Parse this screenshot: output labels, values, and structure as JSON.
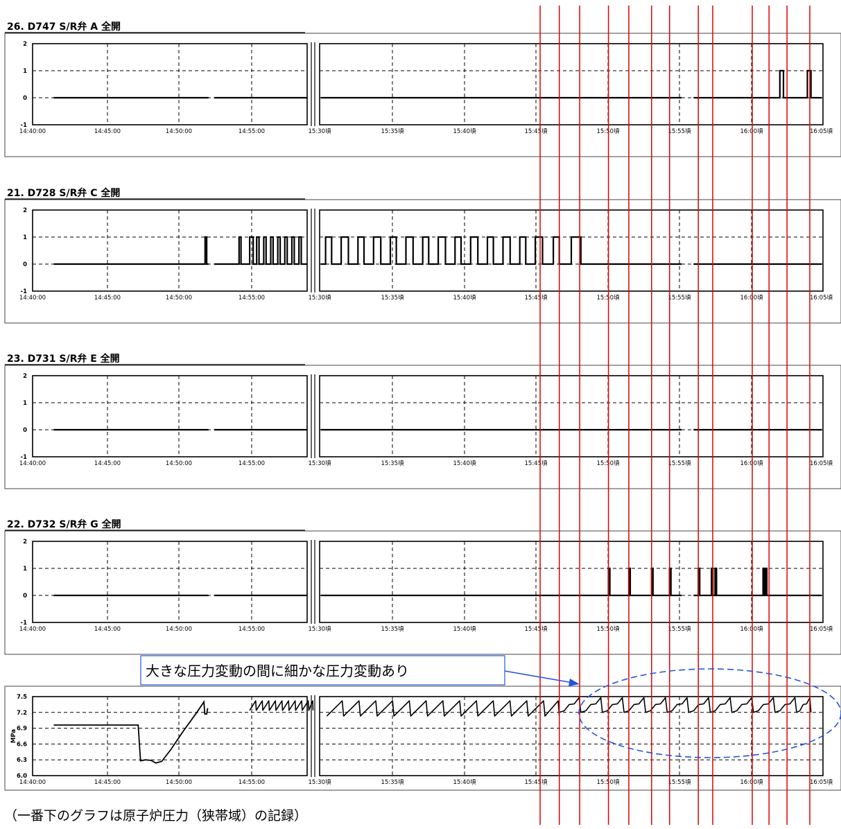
{
  "chart_data": [
    {
      "type": "line",
      "title": "26. D747 S/R弁 A 全開",
      "ylim": [
        -1,
        2
      ],
      "y_ticks": [
        "2",
        "1",
        "0",
        "-1"
      ],
      "x_ticks": [
        "14:40:00",
        "14:45:00",
        "14:50:00",
        "14:55:00",
        "15:30頃",
        "15:35頃",
        "15:40頃",
        "15:45頃",
        "15:50頃",
        "15:55頃",
        "16:00頃",
        "16:05頃"
      ],
      "grid": true,
      "x_break_between": [
        "14:55:00",
        "15:30頃"
      ],
      "series": [
        {
          "open_intervals": [
            [
              "16:02:00",
              "16:02:15"
            ],
            [
              "16:03:55",
              "16:04:10"
            ]
          ]
        }
      ]
    },
    {
      "type": "line",
      "title": "21. D728 S/R弁 C 全開",
      "ylim": [
        -1,
        2
      ],
      "y_ticks": [
        "2",
        "1",
        "0",
        "-1"
      ],
      "x_ticks": [
        "14:40:00",
        "14:45:00",
        "14:50:00",
        "14:55:00",
        "15:30頃",
        "15:35頃",
        "15:40頃",
        "15:45頃",
        "15:50頃",
        "15:55頃",
        "16:00頃",
        "16:05頃"
      ],
      "grid": true,
      "x_break_between": [
        "14:55:00",
        "15:30頃"
      ],
      "series": [
        {
          "open_intervals": [
            [
              "14:52:15",
              "14:52:22"
            ],
            [
              "14:54:40",
              "14:54:48"
            ],
            [
              "14:55:25",
              "14:55:40"
            ],
            [
              "14:55:55",
              "14:56:05"
            ],
            [
              "14:56:25",
              "14:56:35"
            ],
            [
              "14:56:55",
              "14:57:05"
            ],
            [
              "14:57:25",
              "14:57:35"
            ],
            [
              "14:57:55",
              "14:58:05"
            ],
            [
              "14:58:25",
              "14:58:35"
            ],
            [
              "14:58:55",
              "14:59:05"
            ],
            [
              "15:30:25",
              "15:30:50"
            ],
            [
              "15:31:30",
              "15:32:00"
            ],
            [
              "15:32:40",
              "15:33:05"
            ],
            [
              "15:33:45",
              "15:34:15"
            ],
            [
              "15:34:55",
              "15:35:20"
            ],
            [
              "15:36:00",
              "15:36:30"
            ],
            [
              "15:37:10",
              "15:37:35"
            ],
            [
              "15:38:15",
              "15:38:45"
            ],
            [
              "15:39:25",
              "15:39:50"
            ],
            [
              "15:40:30",
              "15:41:00"
            ],
            [
              "15:41:40",
              "15:42:05"
            ],
            [
              "15:42:45",
              "15:43:15"
            ],
            [
              "15:43:55",
              "15:44:20"
            ],
            [
              "15:45:00",
              "15:45:30"
            ],
            [
              "15:46:15",
              "15:46:40"
            ],
            [
              "15:47:30",
              "15:48:10"
            ]
          ]
        }
      ]
    },
    {
      "type": "line",
      "title": "23. D731 S/R弁 E 全開",
      "ylim": [
        -1,
        2
      ],
      "y_ticks": [
        "2",
        "1",
        "0",
        "-1"
      ],
      "x_ticks": [
        "14:40:00",
        "14:45:00",
        "14:50:00",
        "14:55:00",
        "15:30頃",
        "15:35頃",
        "15:40頃",
        "15:45頃",
        "15:50頃",
        "15:55頃",
        "16:00頃",
        "16:05頃"
      ],
      "grid": true,
      "x_break_between": [
        "14:55:00",
        "15:30頃"
      ],
      "series": [
        {
          "open_intervals": []
        }
      ]
    },
    {
      "type": "line",
      "title": "22. D732 S/R弁 G 全開",
      "ylim": [
        -1,
        2
      ],
      "y_ticks": [
        "2",
        "1",
        "0",
        "-1"
      ],
      "x_ticks": [
        "14:40:00",
        "14:45:00",
        "14:50:00",
        "14:55:00",
        "15:30頃",
        "15:35頃",
        "15:40頃",
        "15:45頃",
        "15:50頃",
        "15:55頃",
        "16:00頃",
        "16:05頃"
      ],
      "grid": true,
      "x_break_between": [
        "14:55:00",
        "15:30頃"
      ],
      "series": [
        {
          "open_intervals": [
            [
              "15:50:05",
              "15:50:10"
            ],
            [
              "15:51:30",
              "15:51:35"
            ],
            [
              "15:53:05",
              "15:53:10"
            ],
            [
              "15:54:20",
              "15:54:25"
            ],
            [
              "15:56:20",
              "15:56:25"
            ],
            [
              "15:57:15",
              "15:57:20"
            ],
            [
              "15:57:30",
              "15:57:35"
            ],
            [
              "16:00:50",
              "16:00:55"
            ],
            [
              "16:01:00",
              "16:01:05"
            ]
          ]
        }
      ]
    },
    {
      "type": "line",
      "title": "",
      "ylabel": "MPa",
      "ylim": [
        6.0,
        7.5
      ],
      "y_ticks": [
        "7.5",
        "7.2",
        "6.9",
        "6.6",
        "6.3",
        "6.0"
      ],
      "x_ticks": [
        "14:40:00",
        "14:45:00",
        "14:50:00",
        "14:55:00",
        "15:30頃",
        "15:35頃",
        "15:40頃",
        "15:45頃",
        "15:50頃",
        "15:55頃",
        "16:00頃",
        "16:05頃"
      ],
      "grid": true,
      "x_break_between": [
        "14:55:00",
        "15:30頃"
      ],
      "series": [
        {
          "points": [
            [
              "14:41:30",
              6.96
            ],
            [
              "14:47:30",
              6.96
            ],
            [
              "14:47:40",
              6.28
            ],
            [
              "14:48:00",
              6.3
            ],
            [
              "14:48:25",
              6.29
            ],
            [
              "14:48:45",
              6.24
            ],
            [
              "14:49:10",
              6.27
            ],
            [
              "14:49:50",
              6.5
            ],
            [
              "14:50:40",
              6.83
            ],
            [
              "14:51:40",
              7.2
            ],
            [
              "14:52:10",
              7.4
            ],
            [
              "14:52:14",
              7.17
            ],
            [
              "14:52:22",
              7.17
            ],
            [
              "14:52:26",
              7.28
            ]
          ]
        }
      ],
      "sawtooth_segments": [
        {
          "from": "14:55:25",
          "to": "14:59:55",
          "period_s": 28,
          "max": 7.42,
          "min": 7.24
        },
        {
          "from": "15:30:30",
          "to": "15:46:40",
          "period_s": 70,
          "max": 7.42,
          "min": 7.13
        },
        {
          "from": "15:46:40",
          "to": "16:04:10",
          "period_s": 90,
          "max": 7.46,
          "min": 7.2,
          "fine": true
        }
      ],
      "annotation": "大きな圧力変動の間に細かな圧力変動あり"
    }
  ],
  "caption": "（一番下のグラフは原子炉圧力（狭帯域）の記録）",
  "colors": {
    "reference_lines": "#e00000",
    "annotation": "#2255dd",
    "trace": "#000000"
  },
  "red_line_times": [
    "15:45:20",
    "15:46:40",
    "15:48:05",
    "15:50:05",
    "15:51:30",
    "15:53:05",
    "15:54:20",
    "15:56:20",
    "15:57:20",
    "16:00:05",
    "16:01:15",
    "16:02:30",
    "16:04:05"
  ]
}
